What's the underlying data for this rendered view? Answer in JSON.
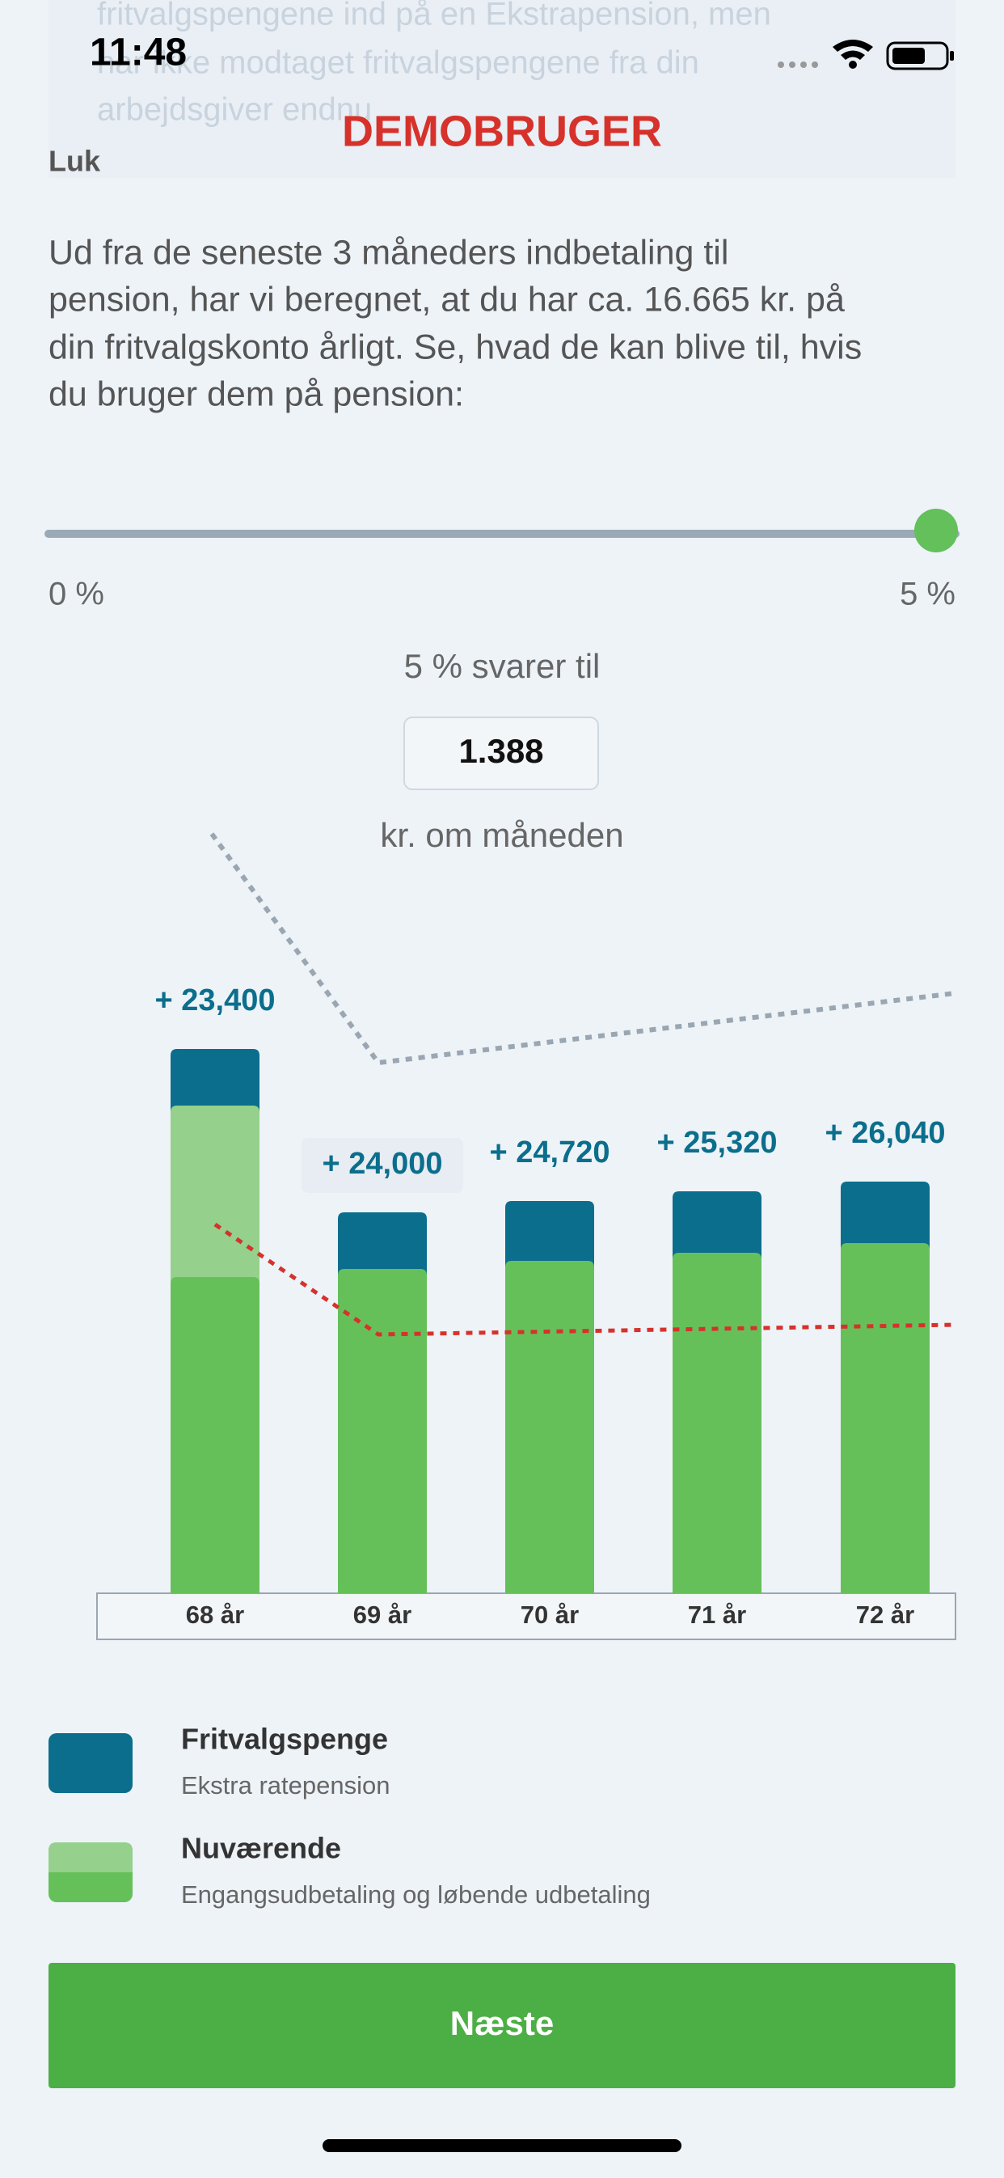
{
  "status_bar": {
    "time": "11:48"
  },
  "background_text": [
    "fritvalgspengene ind på en Ekstrapension, men",
    "har ikke modtaget fritvalgspengene fra din",
    "arbejdsgiver endnu"
  ],
  "header": {
    "title": "DEMOBRUGER",
    "close": "Luk"
  },
  "intro": [
    "Ud fra de seneste 3 måneders indbetaling til",
    "pension, har vi beregnet, at du har ca. 16.665 kr. på",
    "din fritvalgskonto årligt. Se, hvad de kan blive til, hvis",
    "du bruger dem på pension:"
  ],
  "slider": {
    "min_label": "0 %",
    "max_label": "5 %"
  },
  "amount": {
    "caption": "5 % svarer til",
    "value": "1.388",
    "unit": "kr. om måneden"
  },
  "chart": {
    "bars": [
      {
        "category": "68 år",
        "label": "+ 23,400"
      },
      {
        "category": "69 år",
        "label": "+ 24,000"
      },
      {
        "category": "70 år",
        "label": "+ 24,720"
      },
      {
        "category": "71 år",
        "label": "+ 25,320"
      },
      {
        "category": "72 år",
        "label": "+ 26,040"
      }
    ]
  },
  "legend": [
    {
      "title": "Fritvalgspenge",
      "subtitle": "Ekstra ratepension"
    },
    {
      "title": "Nuværende",
      "subtitle": "Engangsudbetaling og løbende udbetaling"
    }
  ],
  "button": {
    "label": "Næste"
  }
}
